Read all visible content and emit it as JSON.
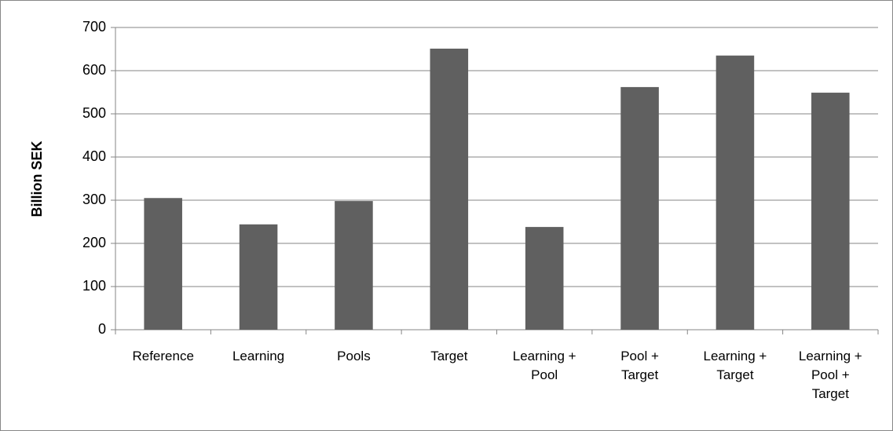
{
  "chart_data": {
    "type": "bar",
    "y_label": "Billion SEK",
    "categories": [
      "Reference",
      "Learning",
      "Pools",
      "Target",
      "Learning + Pool",
      "Pool + Target",
      "Learning + Target",
      "Learning + Pool + Target"
    ],
    "values": [
      305,
      244,
      298,
      651,
      238,
      562,
      635,
      549
    ],
    "color": "#606060",
    "ylim": [
      0,
      700
    ],
    "yticks": [
      0,
      100,
      200,
      300,
      400,
      500,
      600,
      700
    ],
    "grid": true
  }
}
